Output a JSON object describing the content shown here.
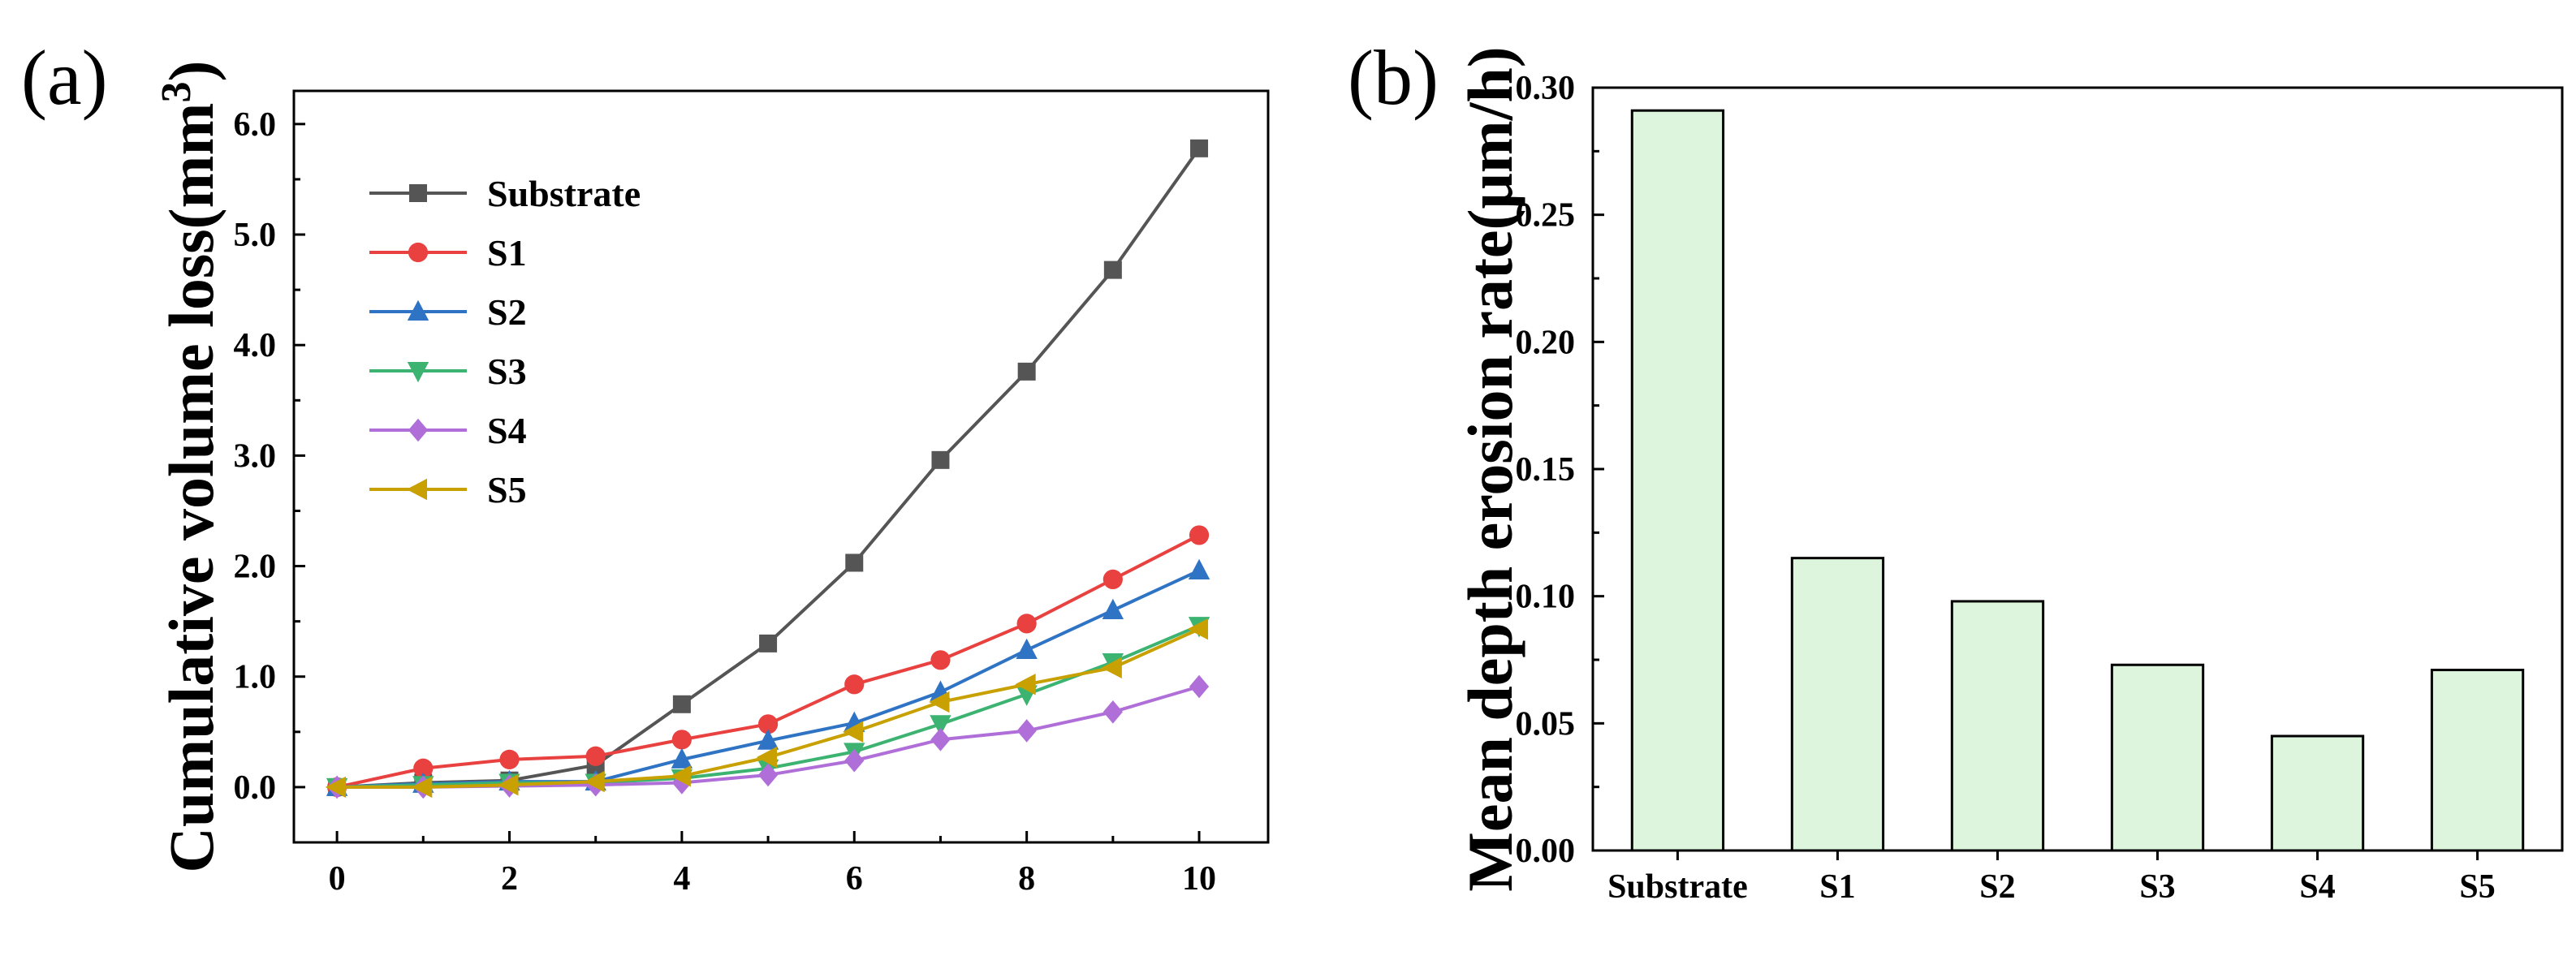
{
  "chart_data": [
    {
      "panel": "(a)",
      "type": "line",
      "xlabel": "",
      "ylabel": "Cumulative volume loss(mm³)",
      "x": [
        0,
        1,
        2,
        3,
        4,
        5,
        6,
        7,
        8,
        9,
        10
      ],
      "xlim": [
        -0.5,
        10.8
      ],
      "ylim": [
        -0.5,
        6.3
      ],
      "xticks": [
        "0",
        "2",
        "4",
        "6",
        "8",
        "10"
      ],
      "yticks": [
        "0.0",
        "1.0",
        "2.0",
        "3.0",
        "4.0",
        "5.0",
        "6.0"
      ],
      "grid": false,
      "legend_position": "top-left",
      "series": [
        {
          "name": "Substrate",
          "color": "#555555",
          "marker": "square",
          "values": [
            0.0,
            0.04,
            0.06,
            0.2,
            0.75,
            1.3,
            2.03,
            2.96,
            3.76,
            4.68,
            5.78
          ]
        },
        {
          "name": "S1",
          "color": "#e8413f",
          "marker": "circle",
          "values": [
            0.0,
            0.17,
            0.25,
            0.28,
            0.43,
            0.57,
            0.93,
            1.15,
            1.48,
            1.88,
            2.28
          ]
        },
        {
          "name": "S2",
          "color": "#2f74c4",
          "marker": "triangle-up",
          "values": [
            0.0,
            0.03,
            0.05,
            0.05,
            0.25,
            0.42,
            0.58,
            0.86,
            1.24,
            1.6,
            1.96
          ]
        },
        {
          "name": "S3",
          "color": "#3cb371",
          "marker": "triangle-down",
          "values": [
            0.0,
            0.02,
            0.04,
            0.04,
            0.08,
            0.17,
            0.32,
            0.57,
            0.84,
            1.13,
            1.46
          ]
        },
        {
          "name": "S4",
          "color": "#b06fd8",
          "marker": "diamond",
          "values": [
            0.0,
            0.0,
            0.01,
            0.02,
            0.04,
            0.11,
            0.24,
            0.43,
            0.51,
            0.68,
            0.91
          ]
        },
        {
          "name": "S5",
          "color": "#c8a000",
          "marker": "triangle-left",
          "values": [
            0.0,
            0.0,
            0.02,
            0.05,
            0.1,
            0.27,
            0.5,
            0.77,
            0.93,
            1.08,
            1.43
          ]
        }
      ]
    },
    {
      "panel": "(b)",
      "type": "bar",
      "xlabel": "",
      "ylabel": "Mean depth erosion rate(μm/h)",
      "categories": [
        "Substrate",
        "S1",
        "S2",
        "S3",
        "S4",
        "S5"
      ],
      "values": [
        0.291,
        0.115,
        0.098,
        0.073,
        0.045,
        0.071
      ],
      "ylim": [
        0.0,
        0.3
      ],
      "yticks": [
        "0.00",
        "0.05",
        "0.10",
        "0.15",
        "0.20",
        "0.25",
        "0.30"
      ],
      "bar_color": "#dcf5dc",
      "edge_color": "#000000",
      "grid": false
    }
  ]
}
